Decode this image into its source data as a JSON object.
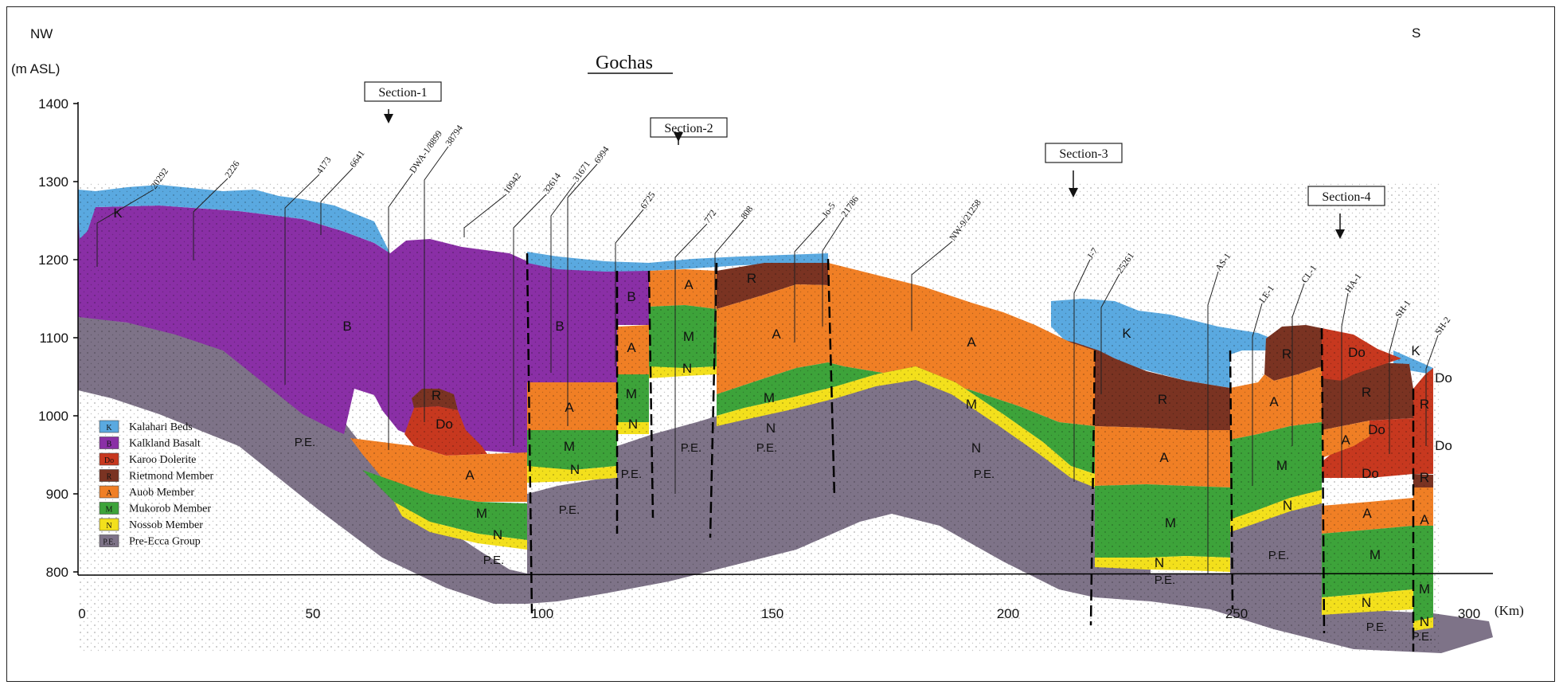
{
  "header": {
    "left_direction": "NW",
    "right_direction": "S",
    "y_unit": "(m  ASL)",
    "x_unit": "(Km)",
    "location": "Gochas"
  },
  "axes": {
    "y_ticks": [
      "1400",
      "1300",
      "1200",
      "1100",
      "1000",
      "900",
      "800"
    ],
    "x_ticks": [
      "0",
      "50",
      "100",
      "150",
      "200",
      "250",
      "300"
    ]
  },
  "sections": [
    "Section-1",
    "Section-2",
    "Section-3",
    "Section-4"
  ],
  "boreholes": [
    "20292",
    "2226",
    "4173",
    "6641",
    "DWA-1/8899",
    "38794",
    "10942",
    "32614",
    "31671",
    "6994",
    "6725",
    "772",
    "808",
    "Jo-5",
    "21786",
    "NW-9/21258",
    "J-7",
    "25261",
    "AS-1",
    "LE-1",
    "CL-1",
    "HA-1",
    "SH-1",
    "SH-2"
  ],
  "legend": [
    {
      "code": "K",
      "label": "Kalahari  Beds",
      "color": "#5aa9e0"
    },
    {
      "code": "B",
      "label": "Kalkland Basalt",
      "color": "#8a2fa6"
    },
    {
      "code": "Do",
      "label": "Karoo Dolerite",
      "color": "#c7381f"
    },
    {
      "code": "R",
      "label": "Rietmond Member",
      "color": "#7a3322"
    },
    {
      "code": "A",
      "label": "Auob Member",
      "color": "#f07f25"
    },
    {
      "code": "M",
      "label": "Mukorob Member",
      "color": "#3da33a"
    },
    {
      "code": "N",
      "label": "Nossob Member",
      "color": "#f3e01c"
    },
    {
      "code": "P.E.",
      "label": "Pre-Ecca Group",
      "color": "#7e7388"
    }
  ],
  "unit_labels": {
    "K": "K",
    "B": "B",
    "Do": "Do",
    "R": "R",
    "A": "A",
    "M": "M",
    "N": "N",
    "PE": "P.E."
  }
}
